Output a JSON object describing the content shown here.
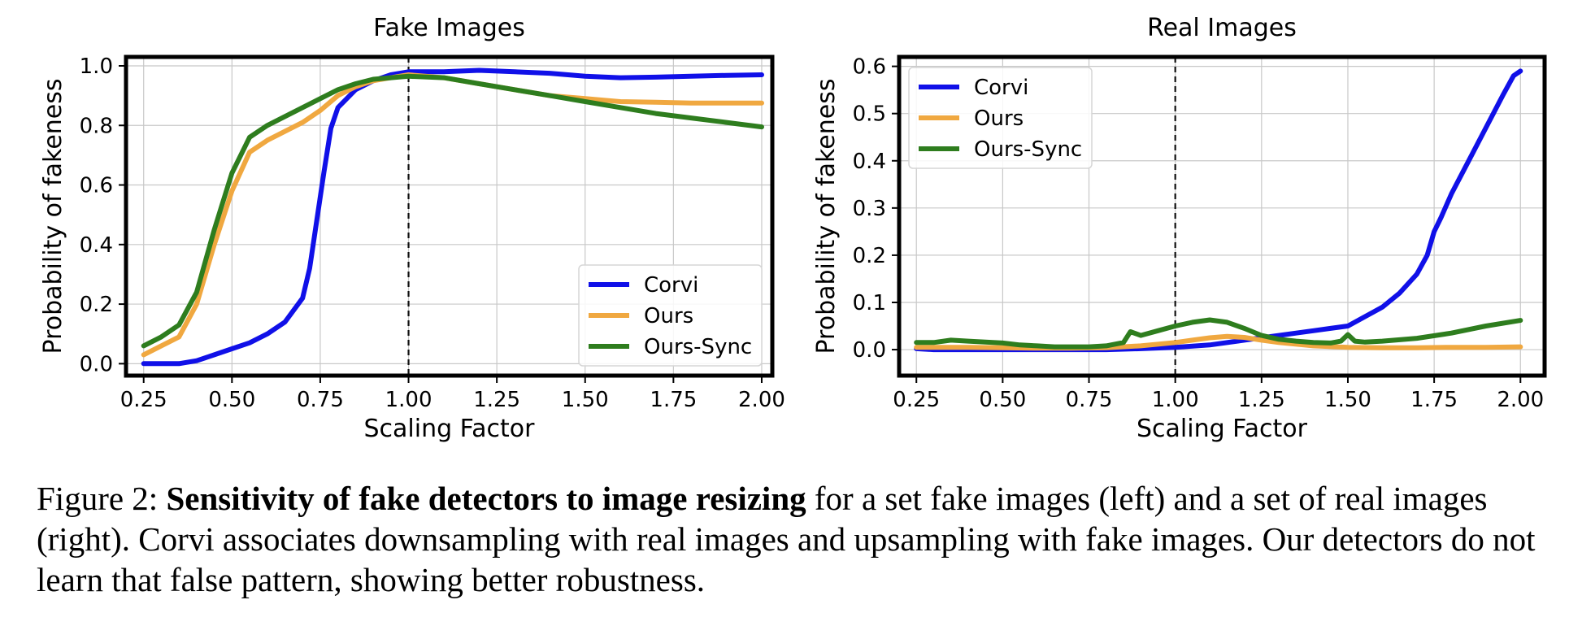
{
  "caption": {
    "label": "Figure 2:",
    "bold": "Sensitivity of fake detectors to image resizing",
    "text": "for a set fake images (left) and a set of real images (right). Corvi associates downsampling with real images and upsampling with fake images. Our detectors do not learn that false pattern, showing better robustness."
  },
  "colors": {
    "Corvi": "#1010e8",
    "Ours": "#f0a840",
    "Ours-Sync": "#2e7d1e"
  },
  "chart_data": [
    {
      "type": "line",
      "title": "Fake Images",
      "xlabel": "Scaling Factor",
      "ylabel": "Probability of fakeness",
      "xlim": [
        0.2,
        2.03
      ],
      "ylim": [
        -0.04,
        1.03
      ],
      "xticks": [
        0.25,
        0.5,
        0.75,
        1.0,
        1.25,
        1.5,
        1.75,
        2.0
      ],
      "xtick_labels": [
        "0.25",
        "0.50",
        "0.75",
        "1.00",
        "1.25",
        "1.50",
        "1.75",
        "2.00"
      ],
      "yticks": [
        0.0,
        0.2,
        0.4,
        0.6,
        0.8,
        1.0
      ],
      "ytick_labels": [
        "0.0",
        "0.2",
        "0.4",
        "0.6",
        "0.8",
        "1.0"
      ],
      "grid": true,
      "legend": "lower-right",
      "vline": 1.0,
      "series": [
        {
          "name": "Corvi",
          "x": [
            0.25,
            0.3,
            0.35,
            0.4,
            0.45,
            0.5,
            0.55,
            0.6,
            0.65,
            0.7,
            0.72,
            0.74,
            0.76,
            0.78,
            0.8,
            0.85,
            0.9,
            0.95,
            1.0,
            1.05,
            1.1,
            1.2,
            1.3,
            1.4,
            1.5,
            1.6,
            1.7,
            1.8,
            1.9,
            2.0
          ],
          "y": [
            0.0,
            0.0,
            0.0,
            0.01,
            0.03,
            0.05,
            0.07,
            0.1,
            0.14,
            0.22,
            0.32,
            0.48,
            0.64,
            0.79,
            0.86,
            0.92,
            0.95,
            0.97,
            0.98,
            0.98,
            0.98,
            0.985,
            0.98,
            0.975,
            0.965,
            0.96,
            0.962,
            0.965,
            0.968,
            0.97
          ]
        },
        {
          "name": "Ours",
          "x": [
            0.25,
            0.3,
            0.35,
            0.4,
            0.45,
            0.5,
            0.55,
            0.6,
            0.65,
            0.7,
            0.75,
            0.8,
            0.85,
            0.9,
            0.95,
            1.0,
            1.1,
            1.2,
            1.3,
            1.4,
            1.5,
            1.6,
            1.7,
            1.8,
            1.9,
            2.0
          ],
          "y": [
            0.03,
            0.06,
            0.09,
            0.2,
            0.4,
            0.58,
            0.71,
            0.75,
            0.78,
            0.81,
            0.85,
            0.9,
            0.93,
            0.95,
            0.96,
            0.97,
            0.96,
            0.94,
            0.92,
            0.9,
            0.89,
            0.88,
            0.878,
            0.875,
            0.875,
            0.875
          ]
        },
        {
          "name": "Ours-Sync",
          "x": [
            0.25,
            0.3,
            0.35,
            0.4,
            0.45,
            0.5,
            0.55,
            0.6,
            0.65,
            0.7,
            0.75,
            0.8,
            0.85,
            0.9,
            0.95,
            1.0,
            1.1,
            1.2,
            1.3,
            1.4,
            1.5,
            1.6,
            1.7,
            1.8,
            1.9,
            2.0
          ],
          "y": [
            0.06,
            0.09,
            0.13,
            0.24,
            0.45,
            0.64,
            0.76,
            0.8,
            0.83,
            0.86,
            0.89,
            0.92,
            0.94,
            0.955,
            0.96,
            0.965,
            0.96,
            0.94,
            0.92,
            0.9,
            0.88,
            0.86,
            0.84,
            0.825,
            0.81,
            0.795
          ]
        }
      ]
    },
    {
      "type": "line",
      "title": "Real Images",
      "xlabel": "Scaling Factor",
      "ylabel": "Probability of fakeness",
      "xlim": [
        0.2,
        2.07
      ],
      "ylim": [
        -0.055,
        0.62
      ],
      "xticks": [
        0.25,
        0.5,
        0.75,
        1.0,
        1.25,
        1.5,
        1.75,
        2.0
      ],
      "xtick_labels": [
        "0.25",
        "0.50",
        "0.75",
        "1.00",
        "1.25",
        "1.50",
        "1.75",
        "2.00"
      ],
      "yticks": [
        0.0,
        0.1,
        0.2,
        0.3,
        0.4,
        0.5,
        0.6
      ],
      "ytick_labels": [
        "0.0",
        "0.1",
        "0.2",
        "0.3",
        "0.4",
        "0.5",
        "0.6"
      ],
      "grid": true,
      "legend": "upper-left",
      "vline": 1.0,
      "series": [
        {
          "name": "Corvi",
          "x": [
            0.25,
            0.3,
            0.4,
            0.5,
            0.6,
            0.7,
            0.8,
            0.9,
            1.0,
            1.1,
            1.2,
            1.3,
            1.35,
            1.4,
            1.45,
            1.5,
            1.55,
            1.6,
            1.65,
            1.7,
            1.73,
            1.75,
            1.77,
            1.8,
            1.85,
            1.9,
            1.95,
            1.98,
            2.0
          ],
          "y": [
            0.002,
            0.0,
            0.0,
            0.0,
            0.0,
            0.0,
            0.0,
            0.002,
            0.005,
            0.01,
            0.02,
            0.03,
            0.035,
            0.04,
            0.045,
            0.05,
            0.07,
            0.09,
            0.12,
            0.16,
            0.2,
            0.25,
            0.28,
            0.33,
            0.4,
            0.47,
            0.54,
            0.58,
            0.59
          ]
        },
        {
          "name": "Ours",
          "x": [
            0.25,
            0.3,
            0.4,
            0.5,
            0.6,
            0.7,
            0.8,
            0.9,
            1.0,
            1.05,
            1.1,
            1.15,
            1.2,
            1.25,
            1.3,
            1.4,
            1.5,
            1.6,
            1.7,
            1.8,
            1.9,
            2.0
          ],
          "y": [
            0.005,
            0.005,
            0.005,
            0.004,
            0.003,
            0.003,
            0.004,
            0.008,
            0.015,
            0.02,
            0.025,
            0.028,
            0.026,
            0.02,
            0.015,
            0.008,
            0.005,
            0.004,
            0.004,
            0.005,
            0.005,
            0.006
          ]
        },
        {
          "name": "Ours-Sync",
          "x": [
            0.25,
            0.3,
            0.35,
            0.4,
            0.45,
            0.5,
            0.55,
            0.6,
            0.65,
            0.7,
            0.75,
            0.8,
            0.85,
            0.87,
            0.9,
            0.95,
            1.0,
            1.05,
            1.1,
            1.15,
            1.2,
            1.25,
            1.3,
            1.35,
            1.4,
            1.45,
            1.48,
            1.5,
            1.52,
            1.55,
            1.6,
            1.7,
            1.8,
            1.9,
            2.0
          ],
          "y": [
            0.015,
            0.015,
            0.02,
            0.018,
            0.016,
            0.014,
            0.01,
            0.008,
            0.006,
            0.006,
            0.006,
            0.008,
            0.015,
            0.038,
            0.03,
            0.04,
            0.05,
            0.058,
            0.063,
            0.058,
            0.045,
            0.03,
            0.022,
            0.018,
            0.015,
            0.014,
            0.018,
            0.032,
            0.018,
            0.016,
            0.018,
            0.024,
            0.035,
            0.05,
            0.062
          ]
        }
      ]
    }
  ]
}
